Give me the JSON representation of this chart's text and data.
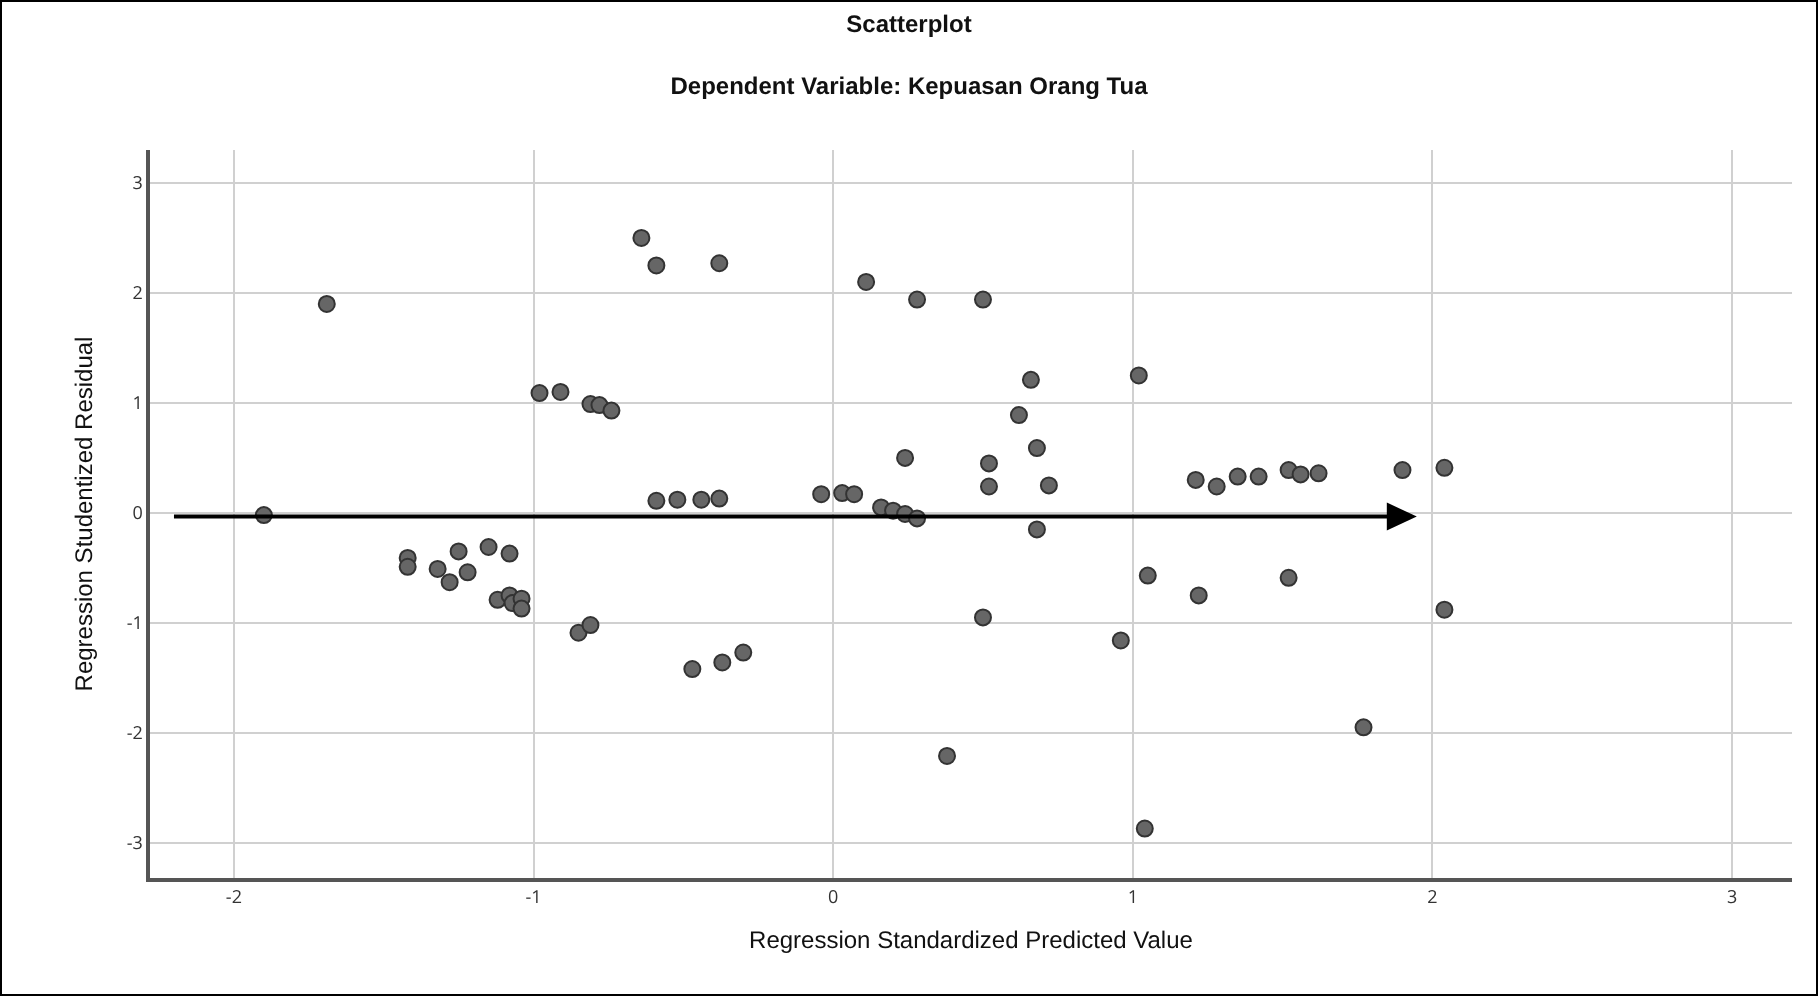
{
  "chart_data": {
    "type": "scatter",
    "title": "Scatterplot",
    "subtitle": "Dependent Variable: Kepuasan Orang Tua",
    "xlabel": "Regression Standardized Predicted Value",
    "ylabel": "Regression Studentized Residual",
    "x": [
      -1.9,
      -1.69,
      -0.98,
      -0.91,
      -0.81,
      -0.78,
      -0.74,
      -0.64,
      -0.59,
      -0.38,
      -0.59,
      -0.52,
      -0.44,
      -0.38,
      -0.04,
      0.03,
      0.07,
      0.11,
      0.28,
      0.24,
      0.16,
      0.2,
      0.24,
      0.28,
      -1.42,
      -1.42,
      -1.25,
      -1.32,
      -1.28,
      -1.22,
      -1.15,
      -1.08,
      -1.12,
      -1.08,
      -1.07,
      -1.04,
      -1.04,
      -0.85,
      -0.81,
      -0.47,
      -0.37,
      -0.3,
      0.38,
      0.5,
      0.66,
      0.62,
      0.68,
      0.52,
      0.52,
      0.72,
      0.68,
      1.02,
      1.21,
      1.28,
      1.35,
      1.42,
      1.52,
      1.56,
      1.62,
      1.9,
      2.04,
      0.5,
      0.96,
      1.05,
      1.22,
      1.52,
      2.04,
      1.77,
      1.04
    ],
    "values": [
      -0.02,
      1.9,
      1.09,
      1.1,
      0.99,
      0.98,
      0.93,
      2.5,
      2.25,
      2.27,
      0.11,
      0.12,
      0.12,
      0.13,
      0.17,
      0.18,
      0.17,
      2.1,
      1.94,
      0.5,
      0.05,
      0.02,
      -0.01,
      -0.05,
      -0.41,
      -0.49,
      -0.35,
      -0.51,
      -0.63,
      -0.54,
      -0.31,
      -0.37,
      -0.79,
      -0.75,
      -0.82,
      -0.78,
      -0.87,
      -1.09,
      -1.02,
      -1.42,
      -1.36,
      -1.27,
      -2.21,
      1.94,
      1.21,
      0.89,
      0.59,
      0.45,
      0.24,
      0.25,
      -0.15,
      1.25,
      0.3,
      0.24,
      0.33,
      0.33,
      0.39,
      0.35,
      0.36,
      0.39,
      0.41,
      -0.95,
      -1.16,
      -0.57,
      -0.75,
      -0.59,
      -0.88,
      -1.95,
      -2.87
    ],
    "color": "#666666",
    "marker": "circle",
    "xlim": [
      -2.28,
      3.2
    ],
    "ylim": [
      -3.32,
      3.3
    ],
    "xticks": [
      -2,
      -1,
      0,
      1,
      2,
      3
    ],
    "yticks": [
      -3,
      -2,
      -1,
      0,
      1,
      2,
      3
    ],
    "grid": true
  }
}
